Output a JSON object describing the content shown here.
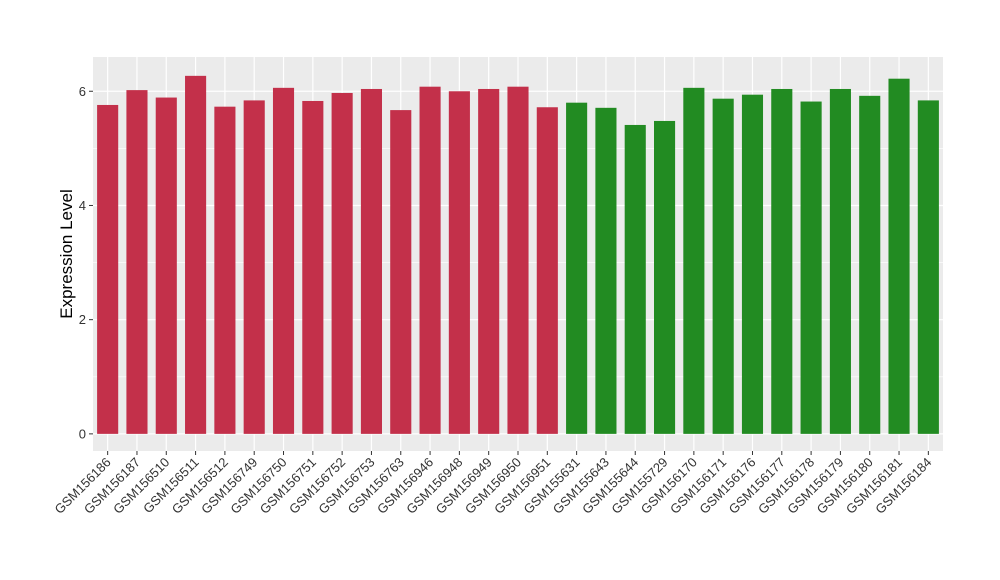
{
  "chart_data": {
    "type": "bar",
    "title": "",
    "xlabel": "",
    "ylabel": "Expression Level",
    "ylim": [
      -0.3,
      6.6
    ],
    "yticks": [
      0,
      2,
      4,
      6
    ],
    "grid": true,
    "legend": "none",
    "colors": {
      "group1": "#C3304A",
      "group2": "#228B22",
      "panel": "#EBEBEB",
      "grid": "#FFFFFF"
    },
    "categories": [
      "GSM156186",
      "GSM156187",
      "GSM156510",
      "GSM156511",
      "GSM156512",
      "GSM156749",
      "GSM156750",
      "GSM156751",
      "GSM156752",
      "GSM156753",
      "GSM156763",
      "GSM156946",
      "GSM156948",
      "GSM156949",
      "GSM156950",
      "GSM156951",
      "GSM155631",
      "GSM155643",
      "GSM155644",
      "GSM155729",
      "GSM156170",
      "GSM156171",
      "GSM156176",
      "GSM156177",
      "GSM156178",
      "GSM156179",
      "GSM156180",
      "GSM156181",
      "GSM156184"
    ],
    "values": [
      5.76,
      6.02,
      5.89,
      6.27,
      5.73,
      5.84,
      6.06,
      5.83,
      5.97,
      6.04,
      5.67,
      6.08,
      6.0,
      6.04,
      6.08,
      5.72,
      5.8,
      5.71,
      5.41,
      5.48,
      6.06,
      5.87,
      5.94,
      6.04,
      5.82,
      6.04,
      5.92,
      6.22,
      5.84
    ],
    "groups": [
      1,
      1,
      1,
      1,
      1,
      1,
      1,
      1,
      1,
      1,
      1,
      1,
      1,
      1,
      1,
      1,
      2,
      2,
      2,
      2,
      2,
      2,
      2,
      2,
      2,
      2,
      2,
      2,
      2
    ]
  }
}
